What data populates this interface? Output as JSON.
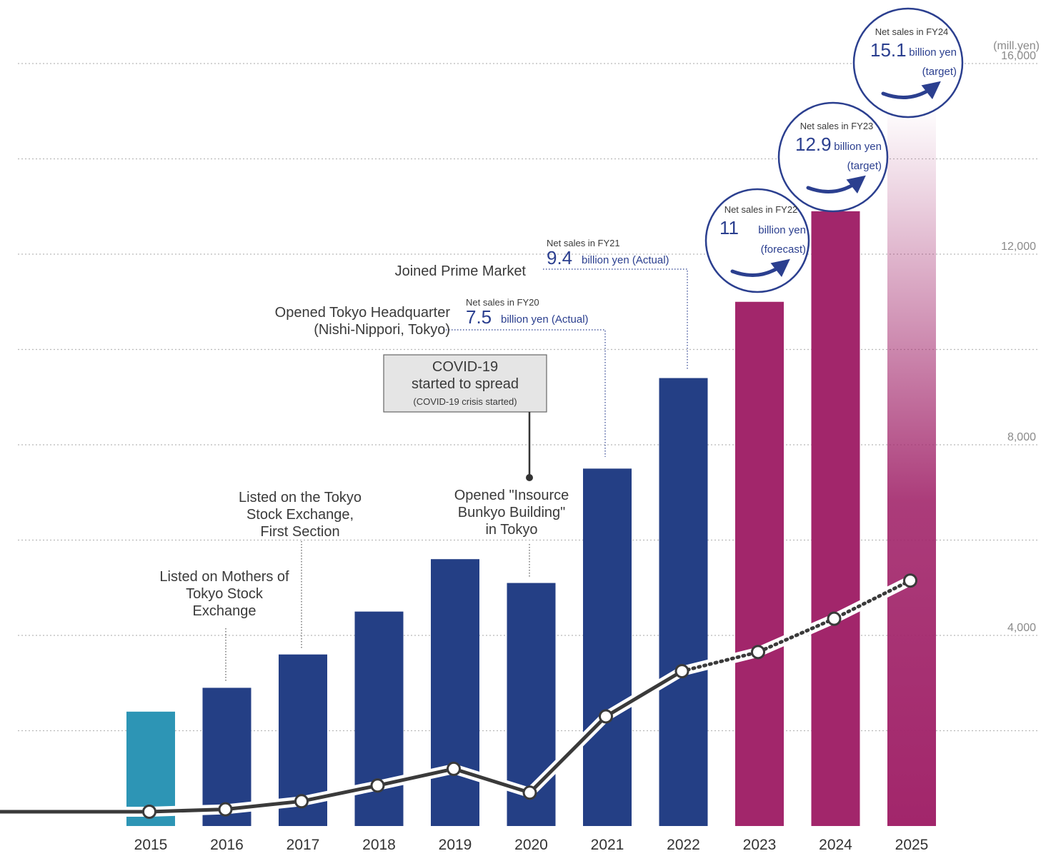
{
  "chart_data": {
    "type": "bar",
    "unit_label": "(mill.yen)",
    "y_ticks": [
      "4,000",
      "8,000",
      "12,000",
      "16,000"
    ],
    "ylim": [
      0,
      16000
    ],
    "grid": "dotted horizontal",
    "categories": [
      "2015",
      "2016",
      "2017",
      "2018",
      "2019",
      "2020",
      "2021",
      "2022",
      "2023",
      "2024",
      "2025"
    ],
    "values": [
      2400,
      2900,
      3600,
      4500,
      5600,
      5100,
      7500,
      9400,
      11000,
      12900,
      15100
    ],
    "line_values": [
      300,
      350,
      520,
      850,
      1200,
      700,
      2300,
      3250,
      3650,
      4350,
      5150
    ],
    "line_dotted_from_index": 7,
    "colors": {
      "first_bar": "#2d95b5",
      "actual_bar": "#243f85",
      "forecast_bar": "#a2266b",
      "line": "#3a3a3a",
      "accent_text": "#2b3f8f"
    },
    "annotations": [
      {
        "lines": [
          "Listed on Mothers of",
          "Tokyo Stock",
          "Exchange"
        ]
      },
      {
        "lines": [
          "Listed on the Tokyo",
          "Stock Exchange,",
          "First Section"
        ]
      },
      {
        "lines": [
          "Opened \"Insource",
          "Bunkyo Building\"",
          "in Tokyo"
        ]
      },
      {
        "lines": [
          "Opened Tokyo Headquarter",
          "(Nishi-Nippori, Tokyo)"
        ]
      },
      {
        "lines": [
          "Joined Prime Market"
        ]
      }
    ],
    "covid_box": {
      "line1": "COVID-19",
      "line2": "started to spread",
      "line3": "(COVID-19 crisis started)"
    },
    "sales_labels": [
      {
        "caption": "Net sales in FY20",
        "value": "7.5",
        "suffix": "billion yen (Actual)"
      },
      {
        "caption": "Net sales in FY21",
        "value": "9.4",
        "suffix": "billion yen (Actual)"
      }
    ],
    "circles": [
      {
        "caption": "Net sales in FY22",
        "value": "11",
        "unit": "billion yen",
        "note": "(forecast)"
      },
      {
        "caption": "Net sales in FY23",
        "value": "12.9",
        "unit": "billion yen",
        "note": "(target)"
      },
      {
        "caption": "Net sales in FY24",
        "value": "15.1",
        "unit": "billion yen",
        "note": "(target)"
      }
    ]
  }
}
